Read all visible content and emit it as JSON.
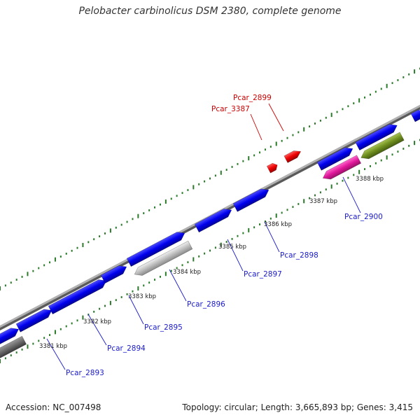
{
  "title": "Pelobacter carbinolicus DSM 2380, complete genome",
  "footer": {
    "accession": "Accession: NC_007498",
    "summary": "Topology: circular; Length: 3,665,893 bp; Genes: 3,415"
  },
  "colors": {
    "backbone": "#8c8c8c",
    "gene_forward": "#0000ee",
    "gene_reverse": "#0000ee",
    "highlight": "#ee0000",
    "pink": "#e0189a",
    "olive": "#6f8e1f",
    "grey_gene": "#bdbdbd",
    "dark_grey_gene": "#6a6a6a",
    "tick_dot": "#2a7a2a",
    "blue_label": "#1a1acc",
    "red_label": "#cc0000"
  },
  "scale_labels": [
    "3381 kbp",
    "3382 kbp",
    "3383 kbp",
    "3384 kbp",
    "3385 kbp",
    "3386 kbp",
    "3387 kbp",
    "3388 kbp"
  ],
  "gene_labels_blue": [
    "Pcar_2893",
    "Pcar_2894",
    "Pcar_2895",
    "Pcar_2896",
    "Pcar_2897",
    "Pcar_2898",
    "Pcar_2900"
  ],
  "gene_labels_red": [
    "Pcar_3387",
    "Pcar_2899"
  ]
}
